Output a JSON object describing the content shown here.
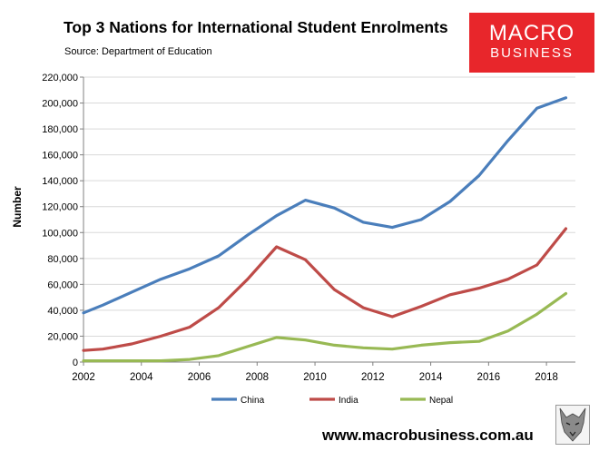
{
  "header": {
    "title": "Top 3 Nations for International Student Enrolments",
    "subtitle": "Source: Department of Education"
  },
  "logo": {
    "line1": "MACRO",
    "line2": "BUSINESS"
  },
  "footer": {
    "website": "www.macrobusiness.com.au"
  },
  "colors": {
    "china": "#4a7ebb",
    "india": "#be4b48",
    "nepal": "#98b954",
    "logo_bg": "#e8262b",
    "grid": "#d9d9d9"
  },
  "chart_data": {
    "type": "line",
    "title": "Top 3 Nations for International Student Enrolments",
    "subtitle": "Source: Department of Education",
    "xlabel": "",
    "ylabel": "Number",
    "xlim": [
      2002,
      2019
    ],
    "ylim": [
      0,
      220000
    ],
    "x_ticks": [
      2002,
      2004,
      2006,
      2008,
      2010,
      2012,
      2014,
      2016,
      2018
    ],
    "x_tick_labels": [
      "2002",
      "2004",
      "2006",
      "2008",
      "2010",
      "2012",
      "2014",
      "2016",
      "2018"
    ],
    "y_ticks": [
      0,
      20000,
      40000,
      60000,
      80000,
      100000,
      120000,
      140000,
      160000,
      180000,
      200000,
      220000
    ],
    "y_tick_labels": [
      "0",
      "20,000",
      "40,000",
      "60,000",
      "80,000",
      "100,000",
      "120,000",
      "140,000",
      "160,000",
      "180,000",
      "200,000",
      "220,000"
    ],
    "grid": "horizontal",
    "legend_position": "bottom",
    "x": [
      2002,
      2002.67,
      2003.67,
      2004.67,
      2005.67,
      2006.67,
      2007.67,
      2008.67,
      2009.67,
      2010.67,
      2011.67,
      2012.67,
      2013.67,
      2014.67,
      2015.67,
      2016.67,
      2017.67,
      2018.67
    ],
    "series": [
      {
        "name": "China",
        "color": "#4a7ebb",
        "values": [
          38000,
          44000,
          54000,
          64000,
          72000,
          82000,
          98000,
          113000,
          125000,
          119000,
          108000,
          104000,
          110000,
          124000,
          144000,
          171000,
          196000,
          204000
        ]
      },
      {
        "name": "India",
        "color": "#be4b48",
        "values": [
          9000,
          10000,
          14000,
          20000,
          27000,
          42000,
          64000,
          89000,
          79000,
          56000,
          42000,
          35000,
          43000,
          52000,
          57000,
          64000,
          75000,
          103000
        ]
      },
      {
        "name": "Nepal",
        "color": "#98b954",
        "values": [
          1000,
          1000,
          1000,
          1000,
          2000,
          5000,
          12000,
          19000,
          17000,
          13000,
          11000,
          10000,
          13000,
          15000,
          16000,
          24000,
          37000,
          53000
        ]
      }
    ]
  }
}
